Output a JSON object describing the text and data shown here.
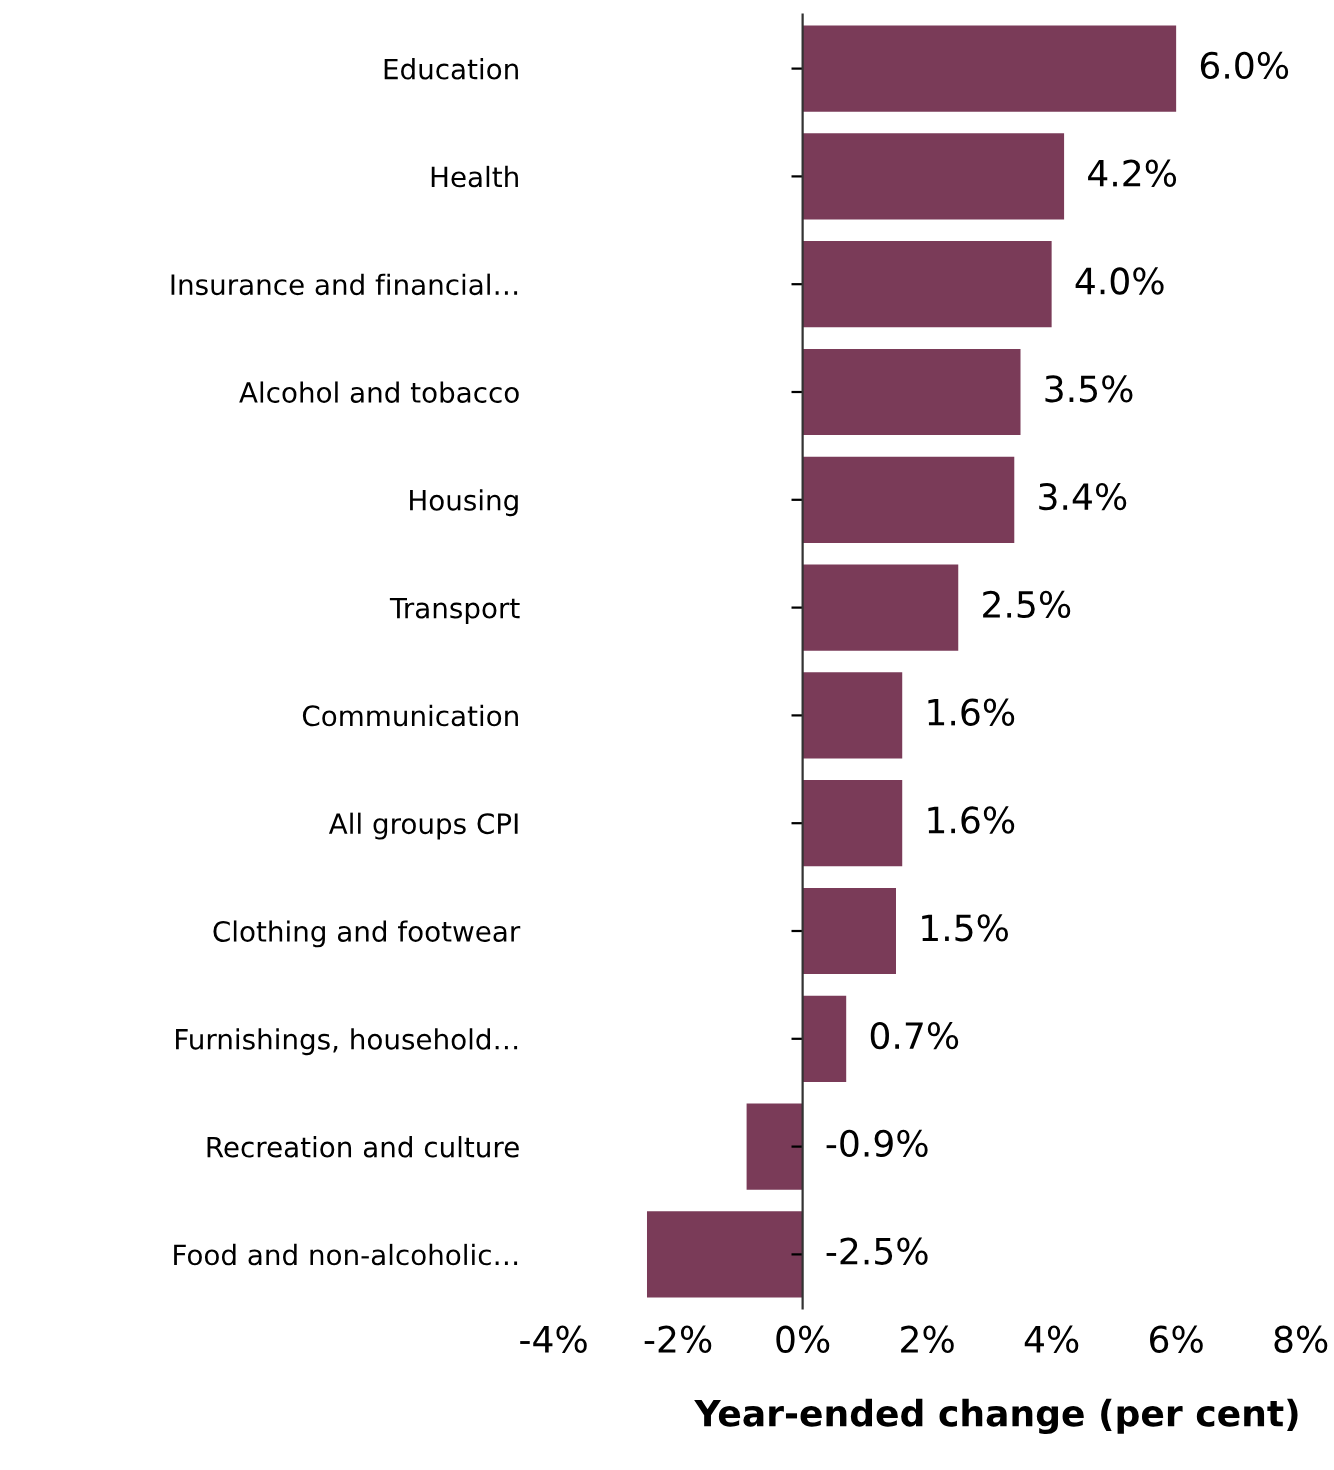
{
  "chart_data": {
    "type": "bar",
    "orientation": "horizontal",
    "xlabel": "Year-ended change (per cent)",
    "categories": [
      "Education",
      "Health",
      "Insurance and financial…",
      "Alcohol and tobacco",
      "Housing",
      "Transport",
      "Communication",
      "All groups CPI",
      "Clothing and footwear",
      "Furnishings, household…",
      "Recreation and culture",
      "Food and non-alcoholic…"
    ],
    "values": [
      6.0,
      4.2,
      4.0,
      3.5,
      3.4,
      2.5,
      1.6,
      1.6,
      1.5,
      0.7,
      -0.9,
      -2.5
    ],
    "value_labels": [
      "6.0%",
      "4.2%",
      "4.0%",
      "3.5%",
      "3.4%",
      "2.5%",
      "1.6%",
      "1.6%",
      "1.5%",
      "0.7%",
      "-0.9%",
      "-2.5%"
    ],
    "color": "#7a3b58",
    "xlim": [
      -4,
      8
    ],
    "xticks": [
      {
        "value": -4,
        "label": "-4%"
      },
      {
        "value": -2,
        "label": "-2%"
      },
      {
        "value": 0,
        "label": "0%"
      },
      {
        "value": 2,
        "label": "2%"
      },
      {
        "value": 4,
        "label": "4%"
      },
      {
        "value": 6,
        "label": "6%"
      },
      {
        "value": 8,
        "label": "8%"
      }
    ],
    "legend": false
  }
}
